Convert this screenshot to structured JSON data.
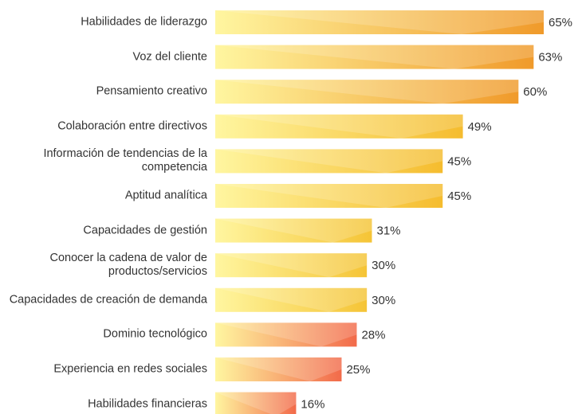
{
  "chart_data": {
    "type": "bar",
    "orientation": "horizontal",
    "categories": [
      "Habilidades de liderazgo",
      "Voz del cliente",
      "Pensamiento creativo",
      "Colaboración entre directivos",
      "Información de tendencias de la competencia",
      "Aptitud analítica",
      "Capacidades de gestión",
      "Conocer la cadena de valor de productos/servicios",
      "Capacidades de creación de demanda",
      "Dominio tecnológico",
      "Experiencia en redes sociales",
      "Habilidades financieras"
    ],
    "values": [
      65,
      63,
      60,
      49,
      45,
      45,
      31,
      30,
      30,
      28,
      25,
      16
    ],
    "value_labels": [
      "65%",
      "63%",
      "60%",
      "49%",
      "45%",
      "45%",
      "31%",
      "30%",
      "30%",
      "28%",
      "25%",
      "16%"
    ],
    "colors": [
      "#f09a2a",
      "#f09a2a",
      "#f09a2a",
      "#f5bc2e",
      "#f5bc2e",
      "#f5bc2e",
      "#f5c436",
      "#f5c436",
      "#f5c436",
      "#f26a4a",
      "#f26a4a",
      "#f26a4a"
    ],
    "xlim": [
      0,
      65
    ]
  }
}
